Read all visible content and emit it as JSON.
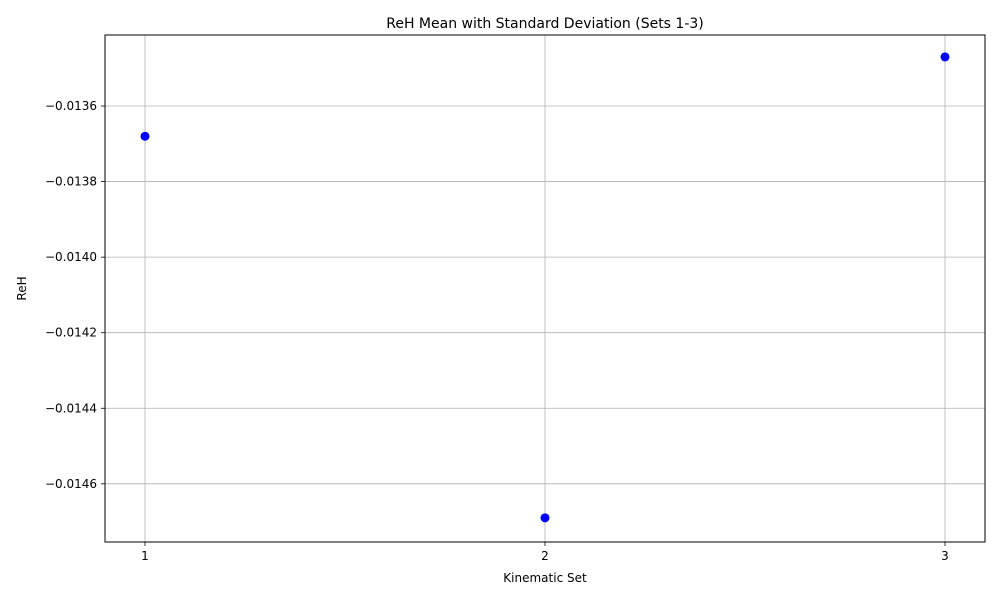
{
  "chart_data": {
    "type": "scatter",
    "title": "ReH Mean with Standard Deviation (Sets 1-3)",
    "xlabel": "Kinematic Set",
    "ylabel": "ReH",
    "x": [
      1,
      2,
      3
    ],
    "y": [
      -0.01368,
      -0.01469,
      -0.01347
    ],
    "xlim": [
      0.9,
      3.1
    ],
    "ylim": [
      -0.014754,
      -0.013412
    ],
    "x_ticks": [
      1,
      2,
      3
    ],
    "x_tick_labels": [
      "1",
      "2",
      "3"
    ],
    "y_ticks": [
      -0.0136,
      -0.0138,
      -0.014,
      -0.0142,
      -0.0144,
      -0.0146
    ],
    "y_tick_labels": [
      "−0.0136",
      "−0.0138",
      "−0.0140",
      "−0.0142",
      "−0.0144",
      "−0.0146"
    ],
    "grid": true,
    "marker_color": "#0000ff",
    "grid_color": "#b0b0b0"
  }
}
